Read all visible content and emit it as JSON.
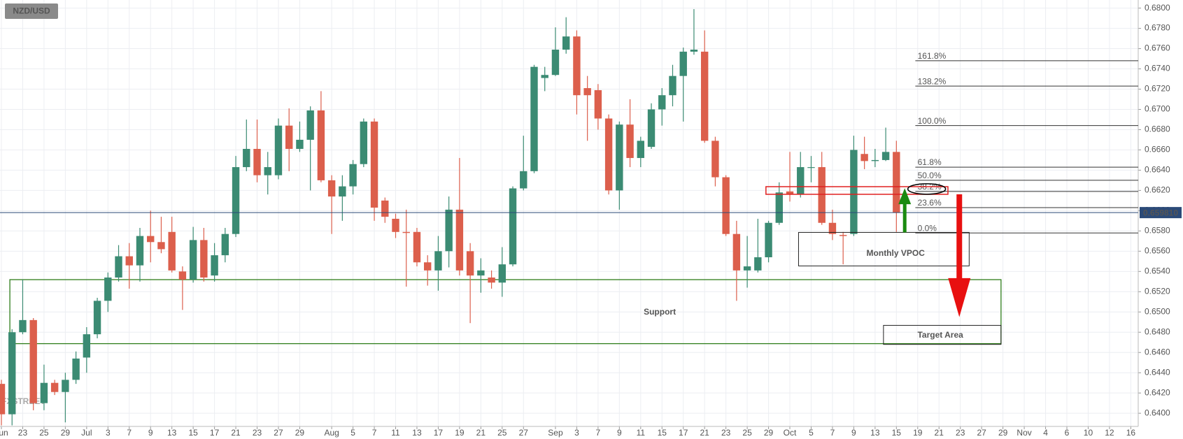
{
  "chart_data": {
    "type": "candlestick",
    "symbol": "NZD/USD",
    "watermark": "FXSTREET",
    "categories": [
      "Jun",
      null,
      "23",
      null,
      "25",
      null,
      "29",
      null,
      "Jul",
      null,
      "3",
      null,
      "7",
      null,
      "9",
      null,
      "13",
      null,
      "15",
      null,
      "17",
      null,
      "21",
      null,
      "23",
      null,
      "27",
      null,
      "29",
      null,
      null,
      "Aug",
      null,
      "5",
      null,
      "7",
      null,
      "11",
      null,
      "13",
      null,
      "17",
      null,
      "19",
      null,
      "21",
      null,
      "25",
      null,
      "27",
      null,
      null,
      "Sep",
      null,
      "3",
      null,
      "7",
      null,
      "9",
      null,
      "11",
      null,
      "15",
      null,
      "17",
      null,
      "21",
      null,
      "23",
      null,
      "25",
      null,
      "29",
      null,
      "Oct",
      null,
      "5",
      null,
      "7",
      null,
      "9",
      null,
      "13",
      null,
      "15",
      null,
      "19",
      null,
      "21",
      null,
      "23",
      null,
      "27",
      null,
      "29",
      null,
      "Nov",
      null,
      "4",
      null,
      "6",
      null,
      "10",
      null,
      "12",
      null,
      "16"
    ],
    "open": [
      0.6429,
      0.6399,
      0.648,
      0.6492,
      0.641,
      0.643,
      0.6421,
      0.6433,
      0.6455,
      0.6478,
      0.6511,
      0.6534,
      0.6555,
      0.6546,
      0.6575,
      0.6569,
      0.6579,
      0.654,
      0.6532,
      0.6571,
      0.6536,
      0.6556,
      0.6577,
      0.6643,
      0.6661,
      0.6635,
      0.6635,
      0.6684,
      0.6661,
      0.667,
      0.6699,
      0.663,
      0.6614,
      0.6624,
      0.6646,
      0.6688,
      0.661,
      0.6592,
      0.6579,
      0.6579,
      0.6549,
      0.6541,
      0.656,
      0.6601,
      0.656,
      0.6536,
      0.6534,
      0.6529,
      0.6547,
      0.6622,
      0.6639,
      0.6731,
      0.6734,
      0.6759,
      0.6772,
      0.6721,
      0.6719,
      0.6691,
      0.662,
      0.6685,
      0.6652,
      0.6663,
      0.67,
      0.6714,
      0.6733,
      0.6757,
      0.6757,
      0.6669,
      0.6633,
      0.6577,
      0.6541,
      0.6541,
      0.6554,
      0.6588,
      0.6619,
      0.6616,
      0.6643,
      0.6643,
      0.6588,
      0.6576,
      0.6577,
      0.6656,
      0.6649,
      0.665,
      0.6658,
      null,
      null,
      null,
      null,
      null,
      null,
      null,
      null,
      null,
      null,
      null,
      null,
      null,
      null,
      null,
      null,
      null,
      null,
      null,
      null,
      null,
      null
    ],
    "high": [
      0.6433,
      0.6483,
      0.6532,
      0.6494,
      0.6448,
      0.6433,
      0.644,
      0.6461,
      0.6485,
      0.6514,
      0.6539,
      0.6566,
      0.6568,
      0.6583,
      0.66,
      0.6594,
      0.6594,
      0.6545,
      0.6584,
      0.6583,
      0.6568,
      0.6583,
      0.6654,
      0.669,
      0.669,
      0.6658,
      0.6691,
      0.6701,
      0.6688,
      0.6703,
      0.6718,
      0.6635,
      0.6635,
      0.665,
      0.6691,
      0.6691,
      0.6613,
      0.6597,
      0.6601,
      0.6583,
      0.6556,
      0.6575,
      0.6614,
      0.6652,
      0.6568,
      0.6553,
      0.6541,
      0.6564,
      0.6624,
      0.6674,
      0.6744,
      0.6742,
      0.6781,
      0.6791,
      0.6778,
      0.6733,
      0.6725,
      0.6695,
      0.6688,
      0.671,
      0.6673,
      0.6706,
      0.6721,
      0.6744,
      0.6761,
      0.6799,
      0.6778,
      0.6673,
      0.6635,
      0.659,
      0.6575,
      0.6592,
      0.659,
      0.6628,
      0.6658,
      0.6658,
      0.6654,
      0.6658,
      0.6601,
      0.6579,
      0.6674,
      0.6673,
      0.6661,
      0.6682,
      0.6669,
      null,
      null,
      null,
      null,
      null,
      null,
      null,
      null,
      null,
      null,
      null,
      null,
      null,
      null,
      null,
      null,
      null,
      null,
      null,
      null,
      null,
      null
    ],
    "low": [
      0.6388,
      0.6388,
      0.6478,
      0.6403,
      0.6403,
      0.6418,
      0.6391,
      0.6429,
      0.644,
      0.6474,
      0.65,
      0.653,
      0.6523,
      0.653,
      0.6549,
      0.6558,
      0.6539,
      0.6502,
      0.6529,
      0.653,
      0.653,
      0.6549,
      0.6574,
      0.6639,
      0.6628,
      0.6616,
      0.6631,
      0.6639,
      0.6658,
      0.662,
      0.6628,
      0.6577,
      0.659,
      0.6616,
      0.6643,
      0.659,
      0.6588,
      0.6573,
      0.6525,
      0.6545,
      0.6526,
      0.6521,
      0.6544,
      0.6536,
      0.6489,
      0.6519,
      0.6523,
      0.6515,
      0.6545,
      0.662,
      0.6637,
      0.6718,
      0.6733,
      0.6755,
      0.6695,
      0.6669,
      0.668,
      0.6616,
      0.6601,
      0.6643,
      0.6643,
      0.6661,
      0.6684,
      0.6703,
      0.6688,
      0.6754,
      0.6667,
      0.6624,
      0.6575,
      0.6511,
      0.6524,
      0.6539,
      0.6549,
      0.6586,
      0.6609,
      0.6613,
      0.6628,
      0.6586,
      0.6571,
      0.6547,
      0.6575,
      0.6641,
      0.6643,
      0.6649,
      0.6579,
      null,
      null,
      null,
      null,
      null,
      null,
      null,
      null,
      null,
      null,
      null,
      null,
      null,
      null,
      null,
      null,
      null,
      null,
      null,
      null,
      null,
      null
    ],
    "close": [
      0.6399,
      0.648,
      0.6492,
      0.641,
      0.643,
      0.6421,
      0.6433,
      0.6454,
      0.6478,
      0.6511,
      0.6534,
      0.6555,
      0.6546,
      0.6575,
      0.6569,
      0.6562,
      0.6541,
      0.6532,
      0.6571,
      0.6534,
      0.6556,
      0.6577,
      0.6643,
      0.6661,
      0.6635,
      0.6643,
      0.6684,
      0.6661,
      0.667,
      0.6699,
      0.663,
      0.6614,
      0.6624,
      0.6646,
      0.6688,
      0.6603,
      0.6594,
      0.6579,
      0.6578,
      0.6549,
      0.6541,
      0.656,
      0.6601,
      0.6541,
      0.6536,
      0.6541,
      0.6529,
      0.6547,
      0.6622,
      0.6639,
      0.6742,
      0.6734,
      0.6759,
      0.6772,
      0.6714,
      0.6714,
      0.6691,
      0.662,
      0.6685,
      0.6652,
      0.6669,
      0.67,
      0.6714,
      0.6733,
      0.6757,
      0.6759,
      0.6669,
      0.6633,
      0.6577,
      0.6541,
      0.6545,
      0.6554,
      0.6588,
      0.6618,
      0.6616,
      0.6643,
      0.6643,
      0.6588,
      0.6577,
      0.6575,
      0.666,
      0.6649,
      0.665,
      0.6658,
      0.6598,
      null,
      null,
      null,
      null,
      null,
      null,
      null,
      null,
      null,
      null,
      null,
      null,
      null,
      null,
      null,
      null,
      null,
      null,
      null,
      null,
      null,
      null
    ],
    "up_color": "#3b8b73",
    "down_color": "#dc5f4c",
    "ylim": [
      0.6387,
      0.6808
    ],
    "yticks": [
      {
        "value": 0.64,
        "label": "0.6400"
      },
      {
        "value": 0.642,
        "label": "0.6420"
      },
      {
        "value": 0.644,
        "label": "0.6440"
      },
      {
        "value": 0.646,
        "label": "0.6460"
      },
      {
        "value": 0.648,
        "label": "0.6480"
      },
      {
        "value": 0.65,
        "label": "0.6500"
      },
      {
        "value": 0.652,
        "label": "0.6520"
      },
      {
        "value": 0.654,
        "label": "0.6540"
      },
      {
        "value": 0.656,
        "label": "0.6560"
      },
      {
        "value": 0.658,
        "label": "0.6580"
      },
      {
        "value": 0.66,
        "label": "0.6600"
      },
      {
        "value": 0.662,
        "label": "0.6620"
      },
      {
        "value": 0.664,
        "label": "0.6640"
      },
      {
        "value": 0.666,
        "label": "0.6660"
      },
      {
        "value": 0.668,
        "label": "0.6680"
      },
      {
        "value": 0.67,
        "label": "0.6700"
      },
      {
        "value": 0.672,
        "label": "0.6720"
      },
      {
        "value": 0.674,
        "label": "0.6740"
      },
      {
        "value": 0.676,
        "label": "0.6760"
      },
      {
        "value": 0.678,
        "label": "0.6780"
      },
      {
        "value": 0.68,
        "label": "0.6800"
      }
    ],
    "grid": true,
    "last_price": {
      "value": 0.65981,
      "label": "0.659810"
    },
    "fib_levels": [
      {
        "value": 0.6748,
        "label": "161.8%"
      },
      {
        "value": 0.6723,
        "label": "138.2%"
      },
      {
        "value": 0.6684,
        "label": "100.0%"
      },
      {
        "value": 0.6643,
        "label": "61.8%"
      },
      {
        "value": 0.663,
        "label": "50.0%"
      },
      {
        "value": 0.6619,
        "label": "38.2%"
      },
      {
        "value": 0.6603,
        "label": "23.6%"
      },
      {
        "value": 0.6578,
        "label": "0.0%"
      }
    ],
    "annotations": [
      "Support",
      "Monthly VPOC",
      "Target Area"
    ]
  }
}
